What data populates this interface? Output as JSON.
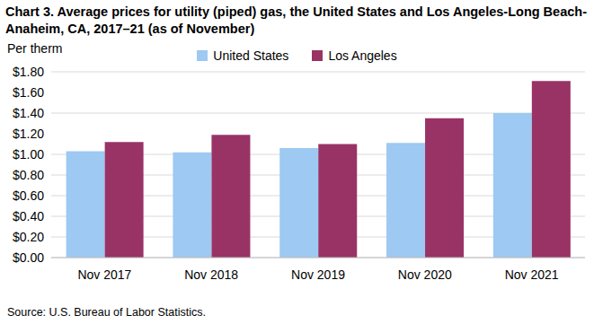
{
  "chart_data": {
    "type": "bar",
    "title": "Chart 3. Average prices for utility (piped) gas, the United States and Los Angeles-Long Beach-Anaheim, CA, 2017–21 (as of November)",
    "y_label": "Per therm",
    "source": "Source: U.S. Bureau of Labor Statistics.",
    "categories": [
      "Nov 2017",
      "Nov 2018",
      "Nov 2019",
      "Nov 2020",
      "Nov 2021"
    ],
    "series": [
      {
        "name": "United States",
        "color": "#9DC9F2",
        "values": [
          1.03,
          1.02,
          1.06,
          1.11,
          1.4
        ]
      },
      {
        "name": "Los Angeles",
        "color": "#993366",
        "values": [
          1.12,
          1.19,
          1.1,
          1.35,
          1.71
        ]
      }
    ],
    "ylim": [
      0,
      1.8
    ],
    "yticks": [
      {
        "value": 0,
        "label": "$0.00"
      },
      {
        "value": 0.2,
        "label": "$0.20"
      },
      {
        "value": 0.4,
        "label": "$0.40"
      },
      {
        "value": 0.6,
        "label": "$0.60"
      },
      {
        "value": 0.8,
        "label": "$0.80"
      },
      {
        "value": 1.0,
        "label": "$1.00"
      },
      {
        "value": 1.2,
        "label": "$1.20"
      },
      {
        "value": 1.4,
        "label": "$1.40"
      },
      {
        "value": 1.6,
        "label": "$1.60"
      },
      {
        "value": 1.8,
        "label": "$1.80"
      }
    ],
    "grid": true,
    "legend": "top"
  }
}
